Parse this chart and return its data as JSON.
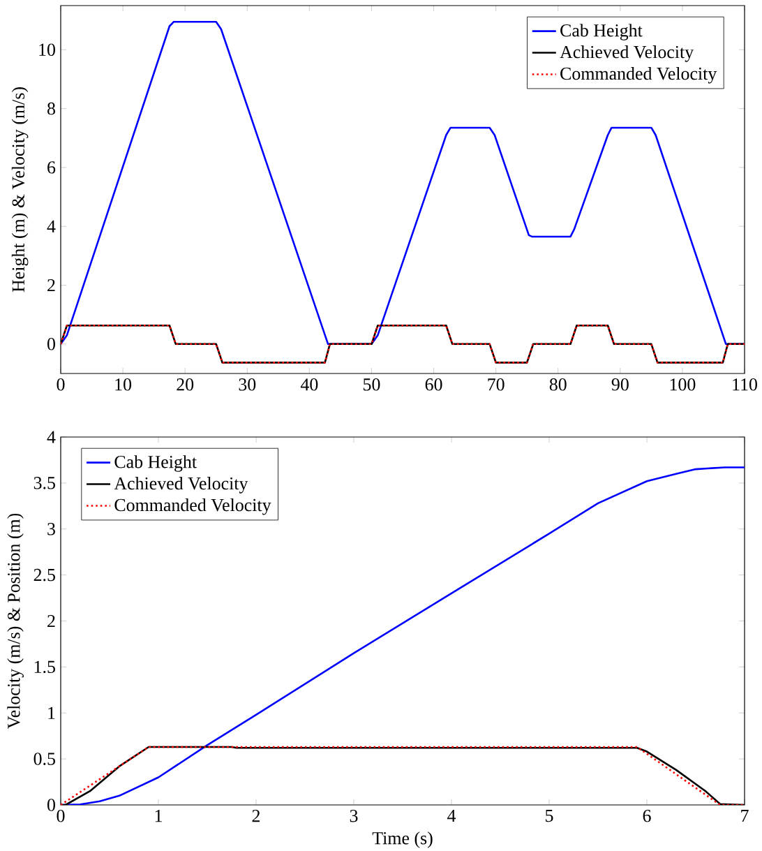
{
  "chart_data": [
    {
      "type": "line",
      "ylabel": "Height (m) & Velocity (m/s)",
      "xlim": [
        0,
        110
      ],
      "ylim": [
        -1,
        11.5
      ],
      "xticks": [
        0,
        10,
        20,
        30,
        40,
        50,
        60,
        70,
        80,
        90,
        100,
        110
      ],
      "yticks": [
        0,
        2,
        4,
        6,
        8,
        10
      ],
      "legend": "top right",
      "series": [
        {
          "name": "Cab Height",
          "color": "#0000ff",
          "line_style": "solid",
          "x": [
            0,
            1,
            17.5,
            18.2,
            25,
            25.8,
            43,
            50,
            51,
            62,
            62.7,
            69,
            69.8,
            75.3,
            75.8,
            82,
            82.6,
            88,
            88.6,
            95,
            95.7,
            107,
            110
          ],
          "values": [
            0,
            0.3,
            10.8,
            10.95,
            10.95,
            10.7,
            0,
            0,
            0.3,
            7.1,
            7.35,
            7.35,
            7.1,
            3.7,
            3.65,
            3.65,
            3.9,
            7.1,
            7.35,
            7.35,
            7.1,
            0,
            0
          ]
        },
        {
          "name": "Achieved Velocity",
          "color": "#000000",
          "line_style": "solid",
          "x": [
            0,
            1,
            17.5,
            18.5,
            25,
            26,
            42.5,
            43.3,
            50,
            51,
            62,
            63,
            69,
            70,
            75,
            76,
            82,
            83,
            88,
            89,
            95,
            96,
            106.5,
            107.3,
            110
          ],
          "values": [
            0,
            0.63,
            0.63,
            0,
            0,
            -0.63,
            -0.63,
            0,
            0,
            0.63,
            0.63,
            0,
            0,
            -0.63,
            -0.63,
            0,
            0,
            0.63,
            0.63,
            0,
            0,
            -0.63,
            -0.63,
            0,
            0
          ]
        },
        {
          "name": "Commanded Velocity",
          "color": "#ff0000",
          "line_style": "dotted",
          "x": [
            0,
            1,
            17.5,
            18.5,
            25,
            26,
            42.5,
            43.3,
            50,
            51,
            62,
            63,
            69,
            70,
            75,
            76,
            82,
            83,
            88,
            89,
            95,
            96,
            106.5,
            107.3,
            110
          ],
          "values": [
            0,
            0.63,
            0.63,
            0,
            0,
            -0.63,
            -0.63,
            0,
            0,
            0.63,
            0.63,
            0,
            0,
            -0.63,
            -0.63,
            0,
            0,
            0.63,
            0.63,
            0,
            0,
            -0.63,
            -0.63,
            0,
            0
          ]
        }
      ]
    },
    {
      "type": "line",
      "xlabel": "Time (s)",
      "ylabel": "Velocity (m/s) & Position (m)",
      "xlim": [
        0,
        7
      ],
      "ylim": [
        0,
        4
      ],
      "xticks": [
        0,
        1,
        2,
        3,
        4,
        5,
        6,
        7
      ],
      "yticks": [
        0,
        0.5,
        1,
        1.5,
        2,
        2.5,
        3,
        3.5,
        4
      ],
      "legend": "top left",
      "series": [
        {
          "name": "Cab Height",
          "color": "#0000ff",
          "line_style": "solid",
          "x": [
            0,
            0.2,
            0.4,
            0.6,
            0.8,
            1,
            1.5,
            2,
            3,
            4,
            5,
            5.5,
            6,
            6.3,
            6.5,
            6.8,
            7
          ],
          "values": [
            0,
            0.005,
            0.04,
            0.1,
            0.2,
            0.3,
            0.65,
            0.98,
            1.65,
            2.3,
            2.95,
            3.28,
            3.52,
            3.6,
            3.65,
            3.67,
            3.67
          ]
        },
        {
          "name": "Achieved Velocity",
          "color": "#000000",
          "line_style": "solid",
          "x": [
            0,
            0.05,
            0.3,
            0.6,
            0.9,
            1.75,
            1.8,
            5.9,
            6,
            6.3,
            6.6,
            6.75,
            7
          ],
          "values": [
            0,
            0,
            0.15,
            0.42,
            0.63,
            0.63,
            0.62,
            0.62,
            0.58,
            0.38,
            0.15,
            0.01,
            0
          ]
        },
        {
          "name": "Commanded Velocity",
          "color": "#ff0000",
          "line_style": "dotted",
          "x": [
            0,
            0.9,
            5.9,
            6.75,
            7
          ],
          "values": [
            0,
            0.63,
            0.63,
            0,
            0
          ]
        }
      ]
    }
  ]
}
